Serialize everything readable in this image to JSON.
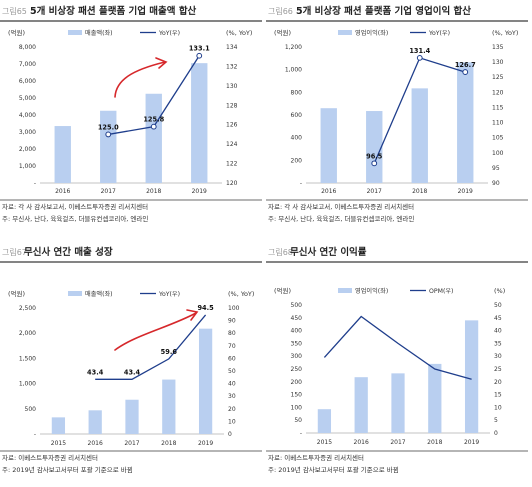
{
  "colors": {
    "bar": "#b9cff0",
    "line": "#1f3e8c",
    "marker_fill": "#ffffff",
    "annotation": "#d6282b",
    "title_rule": "#3a3a3a",
    "src_rule": "#3a3a3a"
  },
  "chart_data": [
    {
      "type": "bar",
      "fig_num": "그림65",
      "title": "5개 비상장 패션 플랫폼 기업 매출액 합산",
      "left_unit": "(억원)",
      "right_unit": "(%, YoY)",
      "categories": [
        "2016",
        "2017",
        "2018",
        "2019"
      ],
      "bar_name": "매출액(좌)",
      "line_name": "YoY(우)",
      "bar_values": [
        3350,
        4250,
        5250,
        7050
      ],
      "line_values": [
        null,
        125.0,
        125.8,
        133.1
      ],
      "line_labels": [
        null,
        "125.0",
        "125.8",
        "133.1"
      ],
      "left_axis": {
        "min": 0,
        "max": 8000,
        "step": 1000,
        "ticks": [
          "-",
          "1,000",
          "2,000",
          "3,000",
          "4,000",
          "5,000",
          "6,000",
          "7,000",
          "8,000"
        ]
      },
      "right_axis": {
        "min": 120,
        "max": 134,
        "step": 2,
        "ticks": [
          "120",
          "122",
          "124",
          "126",
          "128",
          "130",
          "132",
          "134"
        ]
      },
      "source": "자료: 각 사 감사보고서, 이베스트투자증권 리서치센터",
      "note": "주: 무신사, 난다, 육육걸즈, 더블유컨셉코리아, 엔라인",
      "annotation_arrow": true
    },
    {
      "type": "bar",
      "fig_num": "그림66",
      "title": "5개 비상장 패션 플랫폼 기업 영업이익 합산",
      "left_unit": "(억원)",
      "right_unit": "(%, YoY)",
      "categories": [
        "2016",
        "2017",
        "2018",
        "2019"
      ],
      "bar_name": "영업이익(좌)",
      "line_name": "YoY(우)",
      "bar_values": [
        660,
        635,
        835,
        1065
      ],
      "line_values": [
        null,
        96.5,
        131.4,
        126.7
      ],
      "line_labels": [
        null,
        "96.5",
        "131.4",
        "126.7"
      ],
      "left_axis": {
        "min": 0,
        "max": 1200,
        "step": 200,
        "ticks": [
          "-",
          "200",
          "400",
          "600",
          "800",
          "1,000",
          "1,200"
        ]
      },
      "right_axis": {
        "min": 90,
        "max": 135,
        "step": 5,
        "ticks": [
          "90",
          "95",
          "100",
          "105",
          "110",
          "115",
          "120",
          "125",
          "130",
          "135"
        ]
      },
      "source": "자료: 각 사 감사보고서, 이베스트투자증권 리서치센터",
      "note": "주: 무신사, 난다, 육육걸즈, 더블유컨셉코리아, 엔라인",
      "annotation_arrow": false
    },
    {
      "type": "bar",
      "fig_num": "그림67",
      "title": "무신사 연간 매출 성장",
      "left_unit": "(억원)",
      "right_unit": "(%, YoY)",
      "categories": [
        "2015",
        "2016",
        "2017",
        "2018",
        "2019"
      ],
      "bar_name": "매출액(좌)",
      "line_name": "YoY(우)",
      "bar_values": [
        330,
        470,
        680,
        1080,
        2090
      ],
      "line_values": [
        null,
        43.4,
        43.4,
        59.6,
        94.5
      ],
      "line_labels": [
        null,
        "43.4",
        "43.4",
        "59.6",
        "94.5"
      ],
      "left_axis": {
        "min": 0,
        "max": 2500,
        "step": 500,
        "ticks": [
          "-",
          "500",
          "1,000",
          "1,500",
          "2,000",
          "2,500"
        ]
      },
      "right_axis": {
        "min": 0,
        "max": 100,
        "step": 10,
        "ticks": [
          "0",
          "10",
          "20",
          "30",
          "40",
          "50",
          "60",
          "70",
          "80",
          "90",
          "100"
        ]
      },
      "source": "자료: 이베스트투자증권 리서치센터",
      "note": "주: 2019년 감사보고서부터 포괄 기준으로 바뀜",
      "annotation_arrow": true
    },
    {
      "type": "bar",
      "fig_num": "그림68",
      "title": "무신사 연간 이익률",
      "left_unit": "(억원)",
      "right_unit": "(%)",
      "categories": [
        "2015",
        "2016",
        "2017",
        "2018",
        "2019"
      ],
      "bar_name": "영업이익(좌)",
      "line_name": "OPM(우)",
      "bar_values": [
        93,
        218,
        233,
        270,
        440
      ],
      "line_values": [
        29.5,
        45.5,
        35.0,
        25.0,
        21.0
      ],
      "line_labels": [
        null,
        null,
        null,
        null,
        null
      ],
      "left_axis": {
        "min": 0,
        "max": 500,
        "step": 50,
        "ticks": [
          "-",
          "50",
          "100",
          "150",
          "200",
          "250",
          "300",
          "350",
          "400",
          "450",
          "500"
        ]
      },
      "right_axis": {
        "min": 0,
        "max": 50,
        "step": 5,
        "ticks": [
          "0",
          "5",
          "10",
          "15",
          "20",
          "25",
          "30",
          "35",
          "40",
          "45",
          "50"
        ]
      },
      "source": "자료: 이베스트투자증권 리서치센터",
      "note": "주: 2019년 감사보고서부터 포괄 기준으로 바뀜",
      "annotation_arrow": false
    }
  ]
}
